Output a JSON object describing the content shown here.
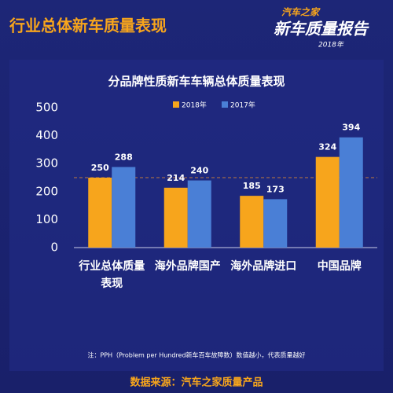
{
  "header": {
    "title": "行业总体新车质量表现",
    "logo": {
      "brand": "汽车之家",
      "name": "新车质量报告",
      "year": "2018年"
    }
  },
  "chart_data": {
    "type": "bar",
    "title": "分品牌性质新车车辆总体质量表现",
    "categories": [
      "行业总体质量表现",
      "海外品牌国产",
      "海外品牌进口",
      "中国品牌"
    ],
    "series": [
      {
        "name": "2018年",
        "color": "#f7a51c",
        "values": [
          250,
          214,
          185,
          324
        ]
      },
      {
        "name": "2017年",
        "color": "#4a7fd6",
        "values": [
          288,
          240,
          173,
          394
        ]
      }
    ],
    "ylim": [
      0,
      500
    ],
    "yticks": [
      0,
      100,
      200,
      300,
      400,
      500
    ],
    "reference_line": 250,
    "legend": "top"
  },
  "footnote": "注：PPH（Problem per Hundred新车百车故障数）数值越小，代表质量越好",
  "source": "数据来源：汽车之家质量产品"
}
